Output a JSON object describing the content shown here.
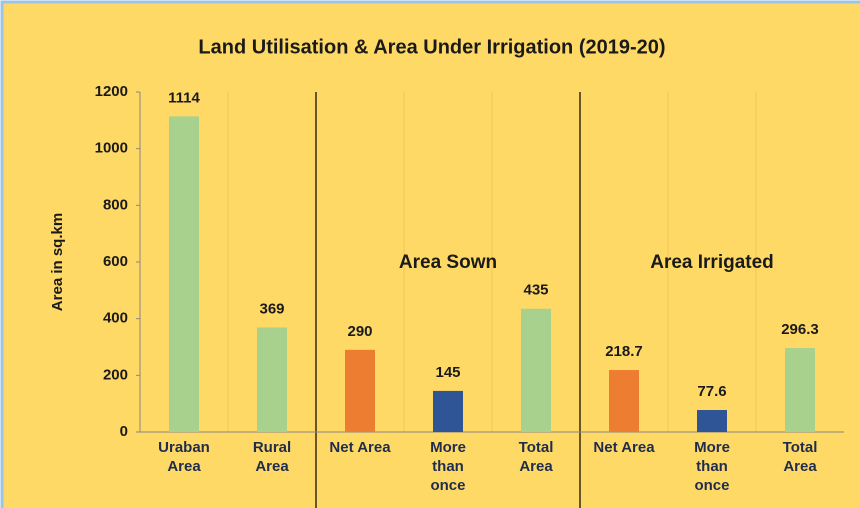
{
  "chart_data": {
    "type": "bar",
    "title": "Land Utilisation & Area Under Irrigation (2019-20)",
    "y_label": "Area in sq.km",
    "categories": [
      "Uraban\nArea",
      "Rural\nArea",
      "Net  Area",
      "More\nthan\nonce",
      "Total\nArea",
      "Net Area",
      "More\nthan\nonce",
      "Total\nArea"
    ],
    "values": [
      1114,
      369,
      290,
      145,
      435,
      218.7,
      77.6,
      296.3
    ],
    "colors": [
      "#a9d18e",
      "#a9d18e",
      "#ed7d31",
      "#2f5597",
      "#a9d18e",
      "#ed7d31",
      "#2f5597",
      "#a9d18e"
    ],
    "annotations": [
      "Area Sown",
      "Area Irrigated"
    ],
    "ylim": [
      0,
      1200
    ],
    "yticks": [
      0,
      200,
      400,
      600,
      800,
      1000,
      1200
    ]
  }
}
